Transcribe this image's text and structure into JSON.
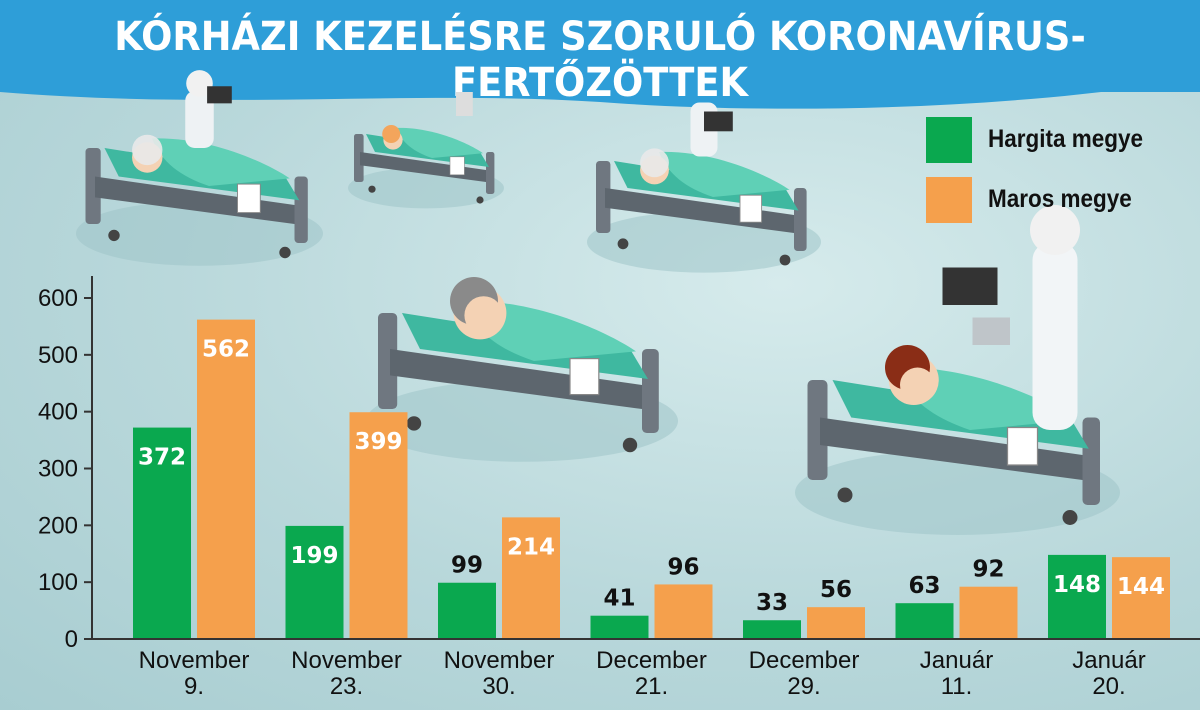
{
  "title": "KÓRHÁZI KEZELÉSRE SZORULÓ KORONAVÍRUS-FERTŐZÖTTEK",
  "colors": {
    "hargita": "#0aa84f",
    "maros": "#f5a04c",
    "header": "#2e9ed8"
  },
  "legend": [
    {
      "label": "Hargita megye",
      "color": "#0aa84f"
    },
    {
      "label": "Maros megye",
      "color": "#f5a04c"
    }
  ],
  "chart_data": {
    "type": "bar",
    "title": "KÓRHÁZI KEZELÉSRE SZORULÓ KORONAVÍRUS-FERTŐZÖTTEK",
    "xlabel": "",
    "ylabel": "",
    "ylim": [
      0,
      600
    ],
    "yticks": [
      0,
      100,
      200,
      300,
      400,
      500,
      600
    ],
    "grid": false,
    "legend_position": "top-right",
    "categories": [
      [
        "November",
        "9."
      ],
      [
        "November",
        "23."
      ],
      [
        "November",
        "30."
      ],
      [
        "December",
        "21."
      ],
      [
        "December",
        "29."
      ],
      [
        "Január",
        "11."
      ],
      [
        "Január",
        "20."
      ]
    ],
    "series": [
      {
        "name": "Hargita megye",
        "color": "#0aa84f",
        "values": [
          372,
          199,
          99,
          41,
          33,
          63,
          148
        ]
      },
      {
        "name": "Maros megye",
        "color": "#f5a04c",
        "values": [
          562,
          399,
          214,
          96,
          56,
          92,
          144
        ]
      }
    ]
  },
  "illustration": {
    "icons": [
      "hospital-bed-icon",
      "patient-icon",
      "doctor-icon",
      "heart-monitor-icon",
      "iv-drip-icon"
    ]
  }
}
